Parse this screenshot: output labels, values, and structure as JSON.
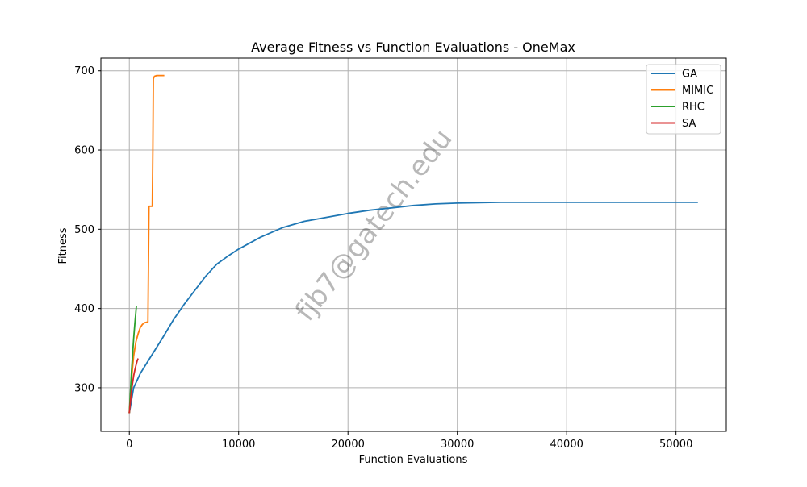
{
  "chart_data": {
    "type": "line",
    "title": "Average Fitness vs Function Evaluations - OneMax",
    "xlabel": "Function Evaluations",
    "ylabel": "Fitness",
    "xlim": [
      -2600,
      54600
    ],
    "ylim": [
      245,
      716
    ],
    "xticks": [
      0,
      10000,
      20000,
      30000,
      40000,
      50000
    ],
    "yticks": [
      300,
      400,
      500,
      600,
      700
    ],
    "grid": true,
    "legend_position": "top-right",
    "watermark": "fjb7@gatech.edu",
    "series": [
      {
        "name": "GA",
        "color": "#1f77b4",
        "x": [
          0,
          400,
          1000,
          2000,
          3000,
          4000,
          5000,
          6000,
          7000,
          8000,
          9000,
          10000,
          12000,
          14000,
          16000,
          18000,
          20000,
          22000,
          24000,
          26000,
          28000,
          30000,
          32000,
          34000,
          36000,
          40000,
          45000,
          50000,
          52000
        ],
        "y": [
          268,
          300,
          318,
          340,
          362,
          385,
          405,
          423,
          441,
          456,
          466,
          475,
          490,
          502,
          510,
          515,
          520,
          524,
          527,
          530,
          532,
          533,
          533.5,
          534,
          534,
          534,
          534,
          534,
          534
        ]
      },
      {
        "name": "MIMIC",
        "color": "#ff7f0e",
        "x": [
          0,
          200,
          400,
          600,
          800,
          1000,
          1200,
          1400,
          1700,
          1750,
          1800,
          2100,
          2150,
          2200,
          2300,
          2500,
          2800,
          3200
        ],
        "y": [
          268,
          310,
          340,
          358,
          368,
          376,
          380,
          382,
          383,
          450,
          529,
          529,
          600,
          690,
          693,
          694,
          694,
          694
        ]
      },
      {
        "name": "RHC",
        "color": "#2ca02c",
        "x": [
          0,
          100,
          200,
          300,
          400,
          500,
          600,
          650
        ],
        "y": [
          268,
          295,
          320,
          342,
          362,
          380,
          396,
          403
        ]
      },
      {
        "name": "SA",
        "color": "#d62728",
        "x": [
          0,
          100,
          200,
          300,
          400,
          500,
          600,
          700,
          800
        ],
        "y": [
          268,
          283,
          296,
          306,
          315,
          322,
          328,
          333,
          337
        ]
      }
    ]
  }
}
